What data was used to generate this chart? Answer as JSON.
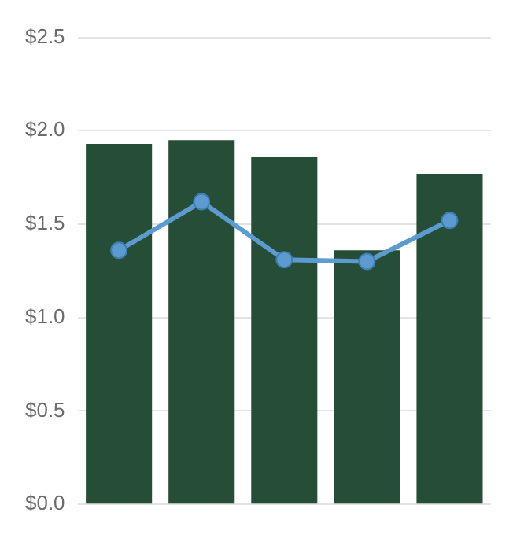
{
  "chart_data": {
    "type": "bar",
    "categories": [
      null,
      null,
      null,
      null,
      null
    ],
    "series": [
      {
        "color": "#264d36",
        "values": [
          1.93,
          1.95,
          1.86,
          1.36,
          1.77
        ]
      },
      {
        "type": "line",
        "color": "#5b9bd0",
        "values": [
          1.36,
          1.62,
          1.31,
          1.3,
          1.52
        ]
      }
    ],
    "ylim": [
      0,
      2.5
    ],
    "yticks": [
      {
        "value": 0,
        "label": "$0.0"
      },
      {
        "value": 0.5,
        "label": "$0.5"
      },
      {
        "value": 1,
        "label": "$1.0"
      },
      {
        "value": 1.5,
        "label": "$1.5"
      },
      {
        "value": 2,
        "label": "$2.0"
      },
      {
        "value": 2.5,
        "label": "$2.5"
      }
    ],
    "grid": "y",
    "marker": "circle",
    "line_style": "solid",
    "legend": false
  }
}
